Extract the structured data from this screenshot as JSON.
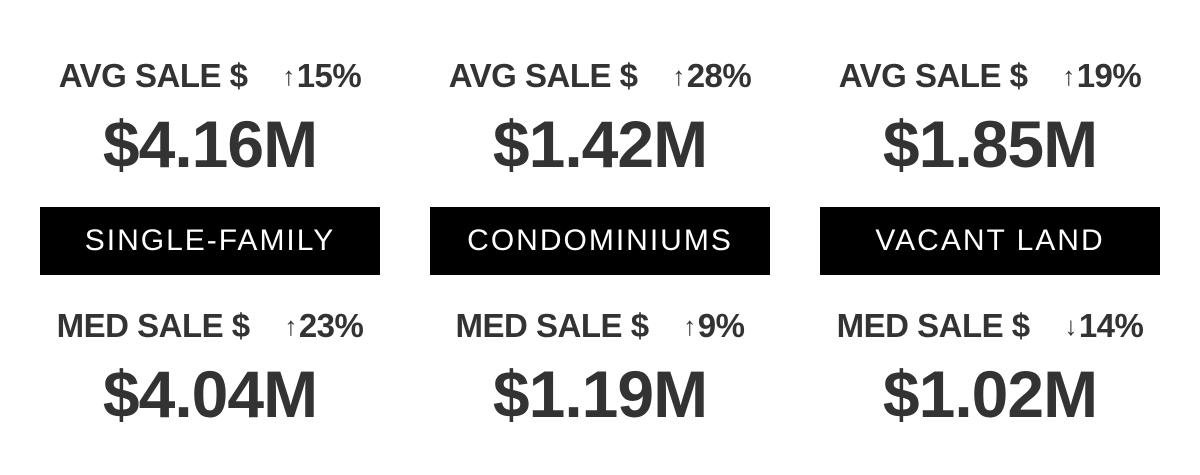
{
  "categories": [
    {
      "name": "SINGLE-FAMILY",
      "avg": {
        "label": "AVG SALE $",
        "change_arrow": "↑",
        "change": "15%",
        "value": "$4.16M"
      },
      "med": {
        "label": "MED SALE $",
        "change_arrow": "↑",
        "change": "23%",
        "value": "$4.04M"
      }
    },
    {
      "name": "CONDOMINIUMS",
      "avg": {
        "label": "AVG SALE $",
        "change_arrow": "↑",
        "change": "28%",
        "value": "$1.42M"
      },
      "med": {
        "label": "MED SALE $",
        "change_arrow": "↑",
        "change": "9%",
        "value": "$1.19M"
      }
    },
    {
      "name": "VACANT LAND",
      "avg": {
        "label": "AVG SALE $",
        "change_arrow": "↑",
        "change": "19%",
        "value": "$1.85M"
      },
      "med": {
        "label": "MED SALE $",
        "change_arrow": "↓",
        "change": "14%",
        "value": "$1.02M"
      }
    }
  ],
  "colors": {
    "text": "#333333",
    "band_background": "#000000",
    "band_text": "#ffffff",
    "background": "#ffffff"
  }
}
